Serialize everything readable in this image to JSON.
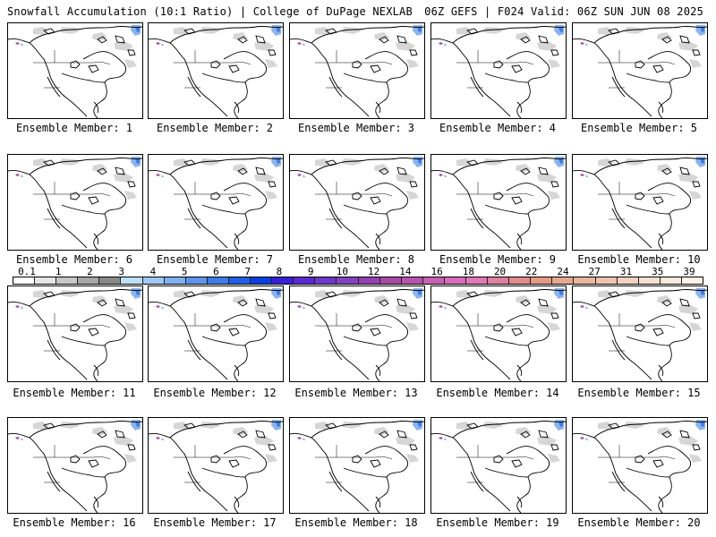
{
  "header": {
    "title_left": "Snowfall Accumulation (10:1 Ratio) | College of DuPage NEXLAB",
    "title_right": "06Z GEFS | F024 Valid: 06Z SUN JUN 08 2025"
  },
  "panels": [
    {
      "label": "Ensemble Member: 1"
    },
    {
      "label": "Ensemble Member: 2"
    },
    {
      "label": "Ensemble Member: 3"
    },
    {
      "label": "Ensemble Member: 4"
    },
    {
      "label": "Ensemble Member: 5"
    },
    {
      "label": "Ensemble Member: 6"
    },
    {
      "label": "Ensemble Member: 7"
    },
    {
      "label": "Ensemble Member: 8"
    },
    {
      "label": "Ensemble Member: 9"
    },
    {
      "label": "Ensemble Member: 10"
    },
    {
      "label": "Ensemble Member: 11"
    },
    {
      "label": "Ensemble Member: 12"
    },
    {
      "label": "Ensemble Member: 13"
    },
    {
      "label": "Ensemble Member: 14"
    },
    {
      "label": "Ensemble Member: 15"
    },
    {
      "label": "Ensemble Member: 16"
    },
    {
      "label": "Ensemble Member: 17"
    },
    {
      "label": "Ensemble Member: 18"
    },
    {
      "label": "Ensemble Member: 19"
    },
    {
      "label": "Ensemble Member: 20"
    }
  ],
  "colorbar": {
    "ticks": [
      "0.1",
      "1",
      "2",
      "3",
      "4",
      "5",
      "6",
      "7",
      "8",
      "9",
      "10",
      "12",
      "14",
      "16",
      "18",
      "20",
      "22",
      "24",
      "27",
      "31",
      "35",
      "39"
    ],
    "colors": [
      "#ffffff",
      "#e6e6e6",
      "#c8c8c8",
      "#a8a8a8",
      "#8a8a8a",
      "#bde0f7",
      "#a0c8f4",
      "#7fb0f0",
      "#5f96ec",
      "#3f7ce8",
      "#2160e4",
      "#0a40e0",
      "#3a1fd8",
      "#5a2ad0",
      "#6e38c8",
      "#8242c0",
      "#9640b4",
      "#a84aa8",
      "#b854ae",
      "#c860b4",
      "#d86cba",
      "#e078b8",
      "#e080a0",
      "#e28c8c",
      "#e49a84",
      "#e6a890",
      "#eab6a0",
      "#eec4b0",
      "#f2d2c0",
      "#f6e0d0",
      "#fae8dc",
      "#fff2e6"
    ]
  }
}
